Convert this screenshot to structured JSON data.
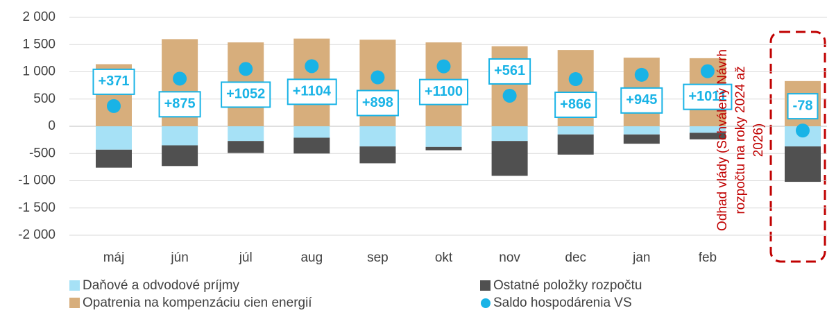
{
  "chart_data": {
    "type": "stacked-bar",
    "categories": [
      "máj",
      "jún",
      "júl",
      "aug",
      "sep",
      "okt",
      "nov",
      "dec",
      "jan",
      "feb",
      null
    ],
    "series": [
      {
        "name": "Daňové a odvodové príjmy",
        "color": "#a6e1f6",
        "kind": "bar",
        "values": [
          -430,
          -350,
          -270,
          -210,
          -370,
          -380,
          -270,
          -150,
          -150,
          -120,
          -370
        ]
      },
      {
        "name": "Ostatné položky rozpočtu",
        "color": "#505050",
        "kind": "bar",
        "values": [
          -330,
          -380,
          -220,
          -290,
          -310,
          -60,
          -640,
          -370,
          -170,
          -120,
          -650
        ]
      },
      {
        "name": "Opatrenia na kompenzáciu cien energií",
        "color": "#d7ae7c",
        "kind": "bar",
        "values": [
          1140,
          1600,
          1540,
          1610,
          1590,
          1540,
          1470,
          1400,
          1260,
          1250,
          830
        ]
      },
      {
        "name": "Saldo hospodárenia VS",
        "color": "#19b3e6",
        "kind": "dot",
        "values": [
          371,
          875,
          1052,
          1104,
          898,
          1100,
          561,
          866,
          945,
          1011,
          -78
        ],
        "value_labels": [
          "+371",
          "+875",
          "+1052",
          "+1104",
          "+898",
          "+1100",
          "+561",
          "+866",
          "+945",
          "+1011",
          "-78"
        ]
      }
    ],
    "ylim": [
      -2000,
      2000
    ],
    "yticks": [
      {
        "value": 2000,
        "label": "2 000"
      },
      {
        "value": 1500,
        "label": "1 500"
      },
      {
        "value": 1000,
        "label": "1 000"
      },
      500,
      0,
      -500,
      {
        "value": -1000,
        "label": "-1 000"
      },
      {
        "value": -1500,
        "label": "-1 500"
      },
      {
        "value": -2000,
        "label": "-2 000"
      }
    ],
    "grid": true,
    "annotation": {
      "lines": [
        "Odhad vlády (Schválený Návrh",
        "rozpočtu na roky 2024 až",
        "2026)"
      ],
      "color": "#c00000"
    }
  }
}
